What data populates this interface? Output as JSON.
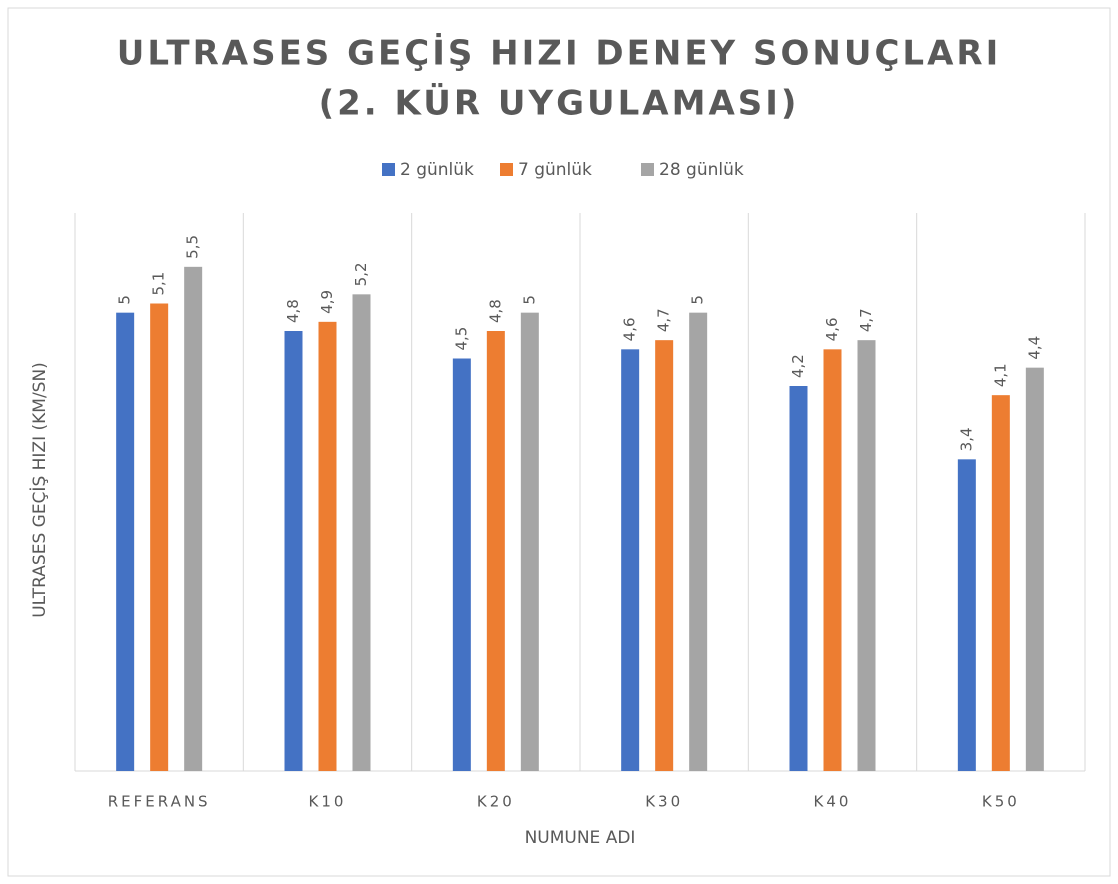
{
  "chart_data": {
    "type": "bar",
    "title": [
      "ULTRASES GEÇİŞ HIZI DENEY SONUÇLARI",
      "(2. KÜR UYGULAMASI)"
    ],
    "x_label": "NUMUNE ADI",
    "y_label": "ULTRASES GEÇİŞ HIZI (KM/SN)",
    "categories": [
      "REFERANS",
      "K10",
      "K20",
      "K30",
      "K40",
      "K50"
    ],
    "series": [
      {
        "name": "2 günlük",
        "color": "#4472c4",
        "values": [
          5,
          4.8,
          4.5,
          4.6,
          4.2,
          3.4
        ],
        "value_labels": [
          "5",
          "4,8",
          "4,5",
          "4,6",
          "4,2",
          "3,4"
        ]
      },
      {
        "name": "7 günlük",
        "color": "#ed7d31",
        "values": [
          5.1,
          4.9,
          4.8,
          4.7,
          4.6,
          4.1
        ],
        "value_labels": [
          "5,1",
          "4,9",
          "4,8",
          "4,7",
          "4,6",
          "4,1"
        ]
      },
      {
        "name": "28 günlük",
        "color": "#a5a5a5",
        "values": [
          5.5,
          5.2,
          5,
          5,
          4.7,
          4.4
        ],
        "value_labels": [
          "5,5",
          "5,2",
          "5",
          "5",
          "4,7",
          "4,4"
        ]
      }
    ],
    "ylim": [
      0,
      6
    ],
    "legend": "top"
  }
}
